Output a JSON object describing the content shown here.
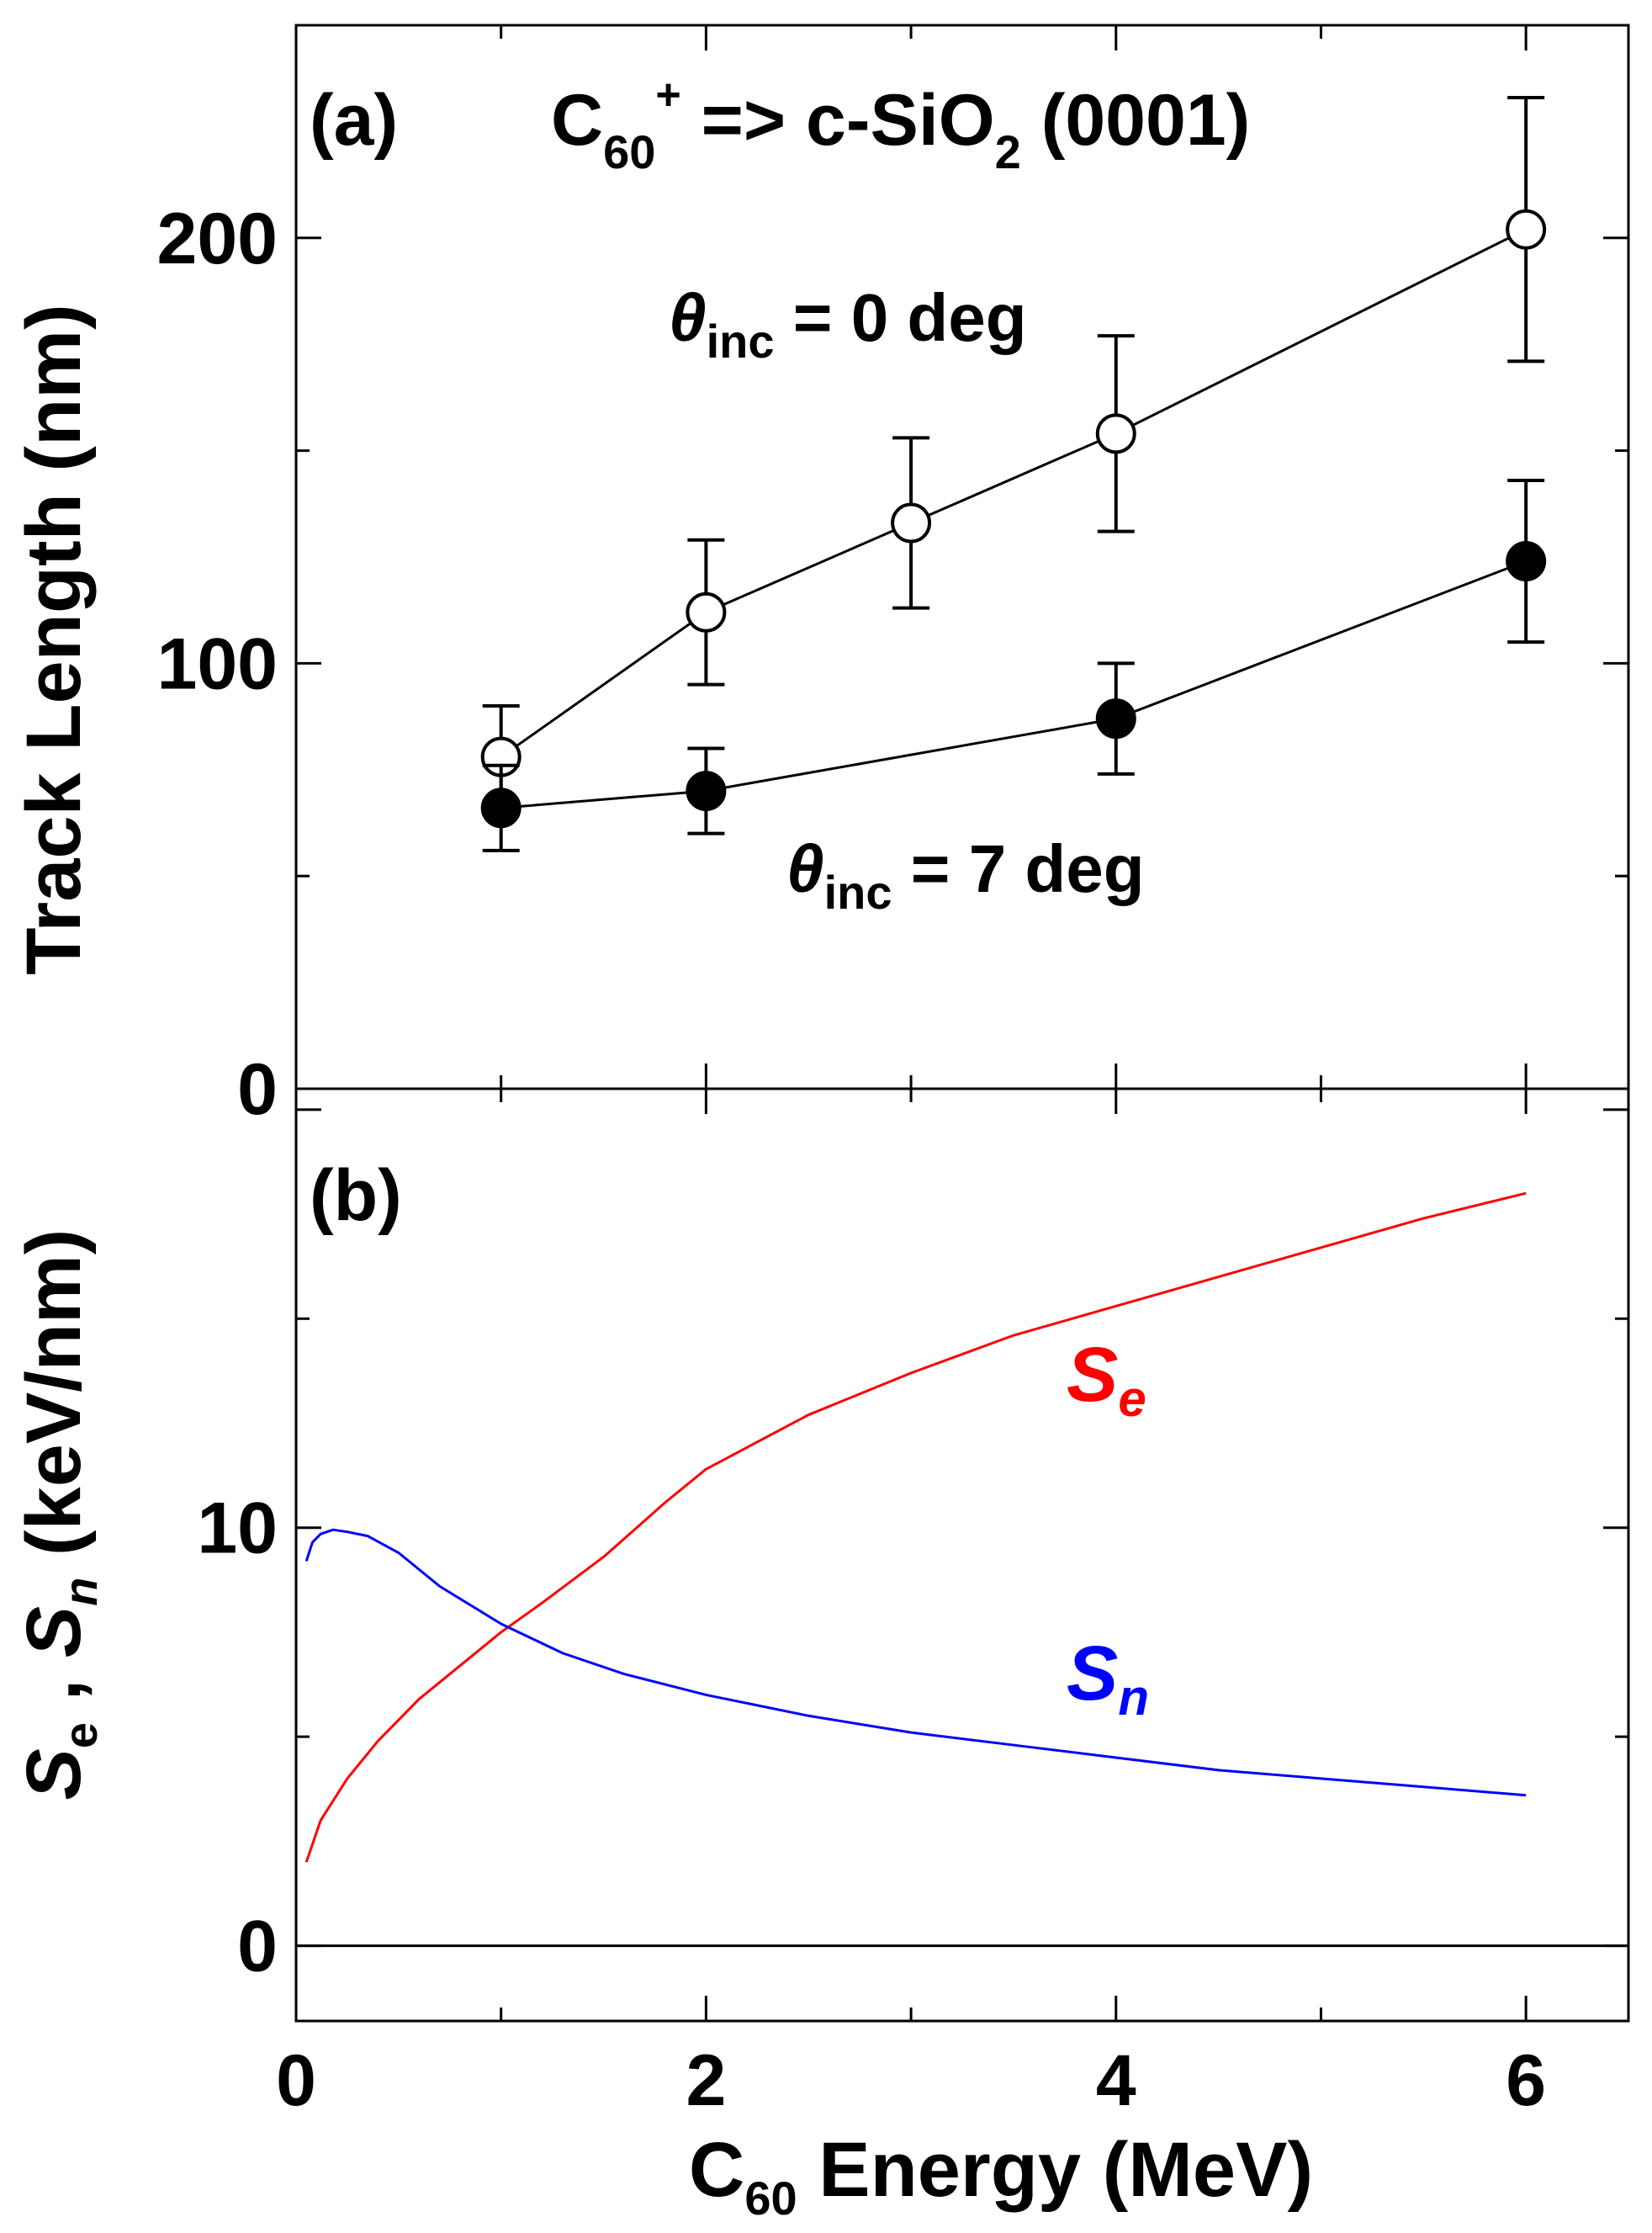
{
  "chart_data": [
    {
      "panel": "a",
      "type": "line",
      "panel_label": "(a)",
      "title": {
        "main": "C",
        "sub": "60",
        "sup": "+",
        "rest1": " => c-SiO",
        "sub2": "2",
        "rest2": " (0001)"
      },
      "ylabel": "Track Length  (nm)",
      "xlim": [
        0,
        6.5
      ],
      "ylim": [
        0,
        250
      ],
      "y_ticks": [
        0,
        100,
        200
      ],
      "grid": false,
      "series": [
        {
          "name_sym": "θ",
          "name_sub": "inc",
          "name_rest": " = 0 deg",
          "marker": "open-circle",
          "x": [
            1,
            2,
            3,
            4,
            6
          ],
          "y": [
            78,
            112,
            133,
            154,
            202
          ],
          "yerr": [
            12,
            17,
            20,
            23,
            31
          ]
        },
        {
          "name_sym": "θ",
          "name_sub": "inc",
          "name_rest": " = 7 deg",
          "marker": "filled-circle",
          "x": [
            1,
            2,
            4,
            6
          ],
          "y": [
            66,
            70,
            87,
            124
          ],
          "yerr": [
            10,
            10,
            13,
            19
          ]
        }
      ]
    },
    {
      "panel": "b",
      "type": "line",
      "panel_label": "(b)",
      "ylabel": {
        "s1": "S",
        "sub1": "e",
        "mid": " , ",
        "s2": "S",
        "sub2": "n",
        "rest": " (keV/nm)"
      },
      "xlabel": {
        "main": "C",
        "sub": "60",
        "rest": " Energy (MeV)"
      },
      "xlim": [
        0,
        6.5
      ],
      "ylim": [
        -1.8,
        20.5
      ],
      "x_ticks": [
        0,
        2,
        4,
        6
      ],
      "y_ticks": [
        0,
        10
      ],
      "grid": false,
      "zero_line": true,
      "series": [
        {
          "label_s": "S",
          "label_sub": "e",
          "color": "#ff0000",
          "x": [
            0.05,
            0.12,
            0.25,
            0.4,
            0.6,
            0.8,
            1.0,
            1.2,
            1.5,
            1.8,
            2.0,
            2.5,
            3.0,
            3.5,
            4.0,
            4.5,
            5.0,
            5.5,
            6.0
          ],
          "y": [
            2.0,
            3.0,
            4.0,
            4.9,
            5.9,
            6.7,
            7.5,
            8.2,
            9.3,
            10.6,
            11.4,
            12.7,
            13.7,
            14.6,
            15.3,
            16.0,
            16.7,
            17.4,
            18.0
          ]
        },
        {
          "label_s": "S",
          "label_sub": "n",
          "color": "#0000ff",
          "x": [
            0.05,
            0.08,
            0.12,
            0.18,
            0.25,
            0.35,
            0.5,
            0.7,
            1.0,
            1.3,
            1.6,
            2.0,
            2.5,
            3.0,
            3.5,
            4.0,
            4.5,
            5.0,
            5.5,
            6.0
          ],
          "y": [
            9.2,
            9.65,
            9.85,
            9.95,
            9.9,
            9.8,
            9.4,
            8.6,
            7.7,
            7.0,
            6.5,
            6.0,
            5.5,
            5.1,
            4.8,
            4.5,
            4.2,
            4.0,
            3.8,
            3.6
          ]
        }
      ]
    }
  ]
}
